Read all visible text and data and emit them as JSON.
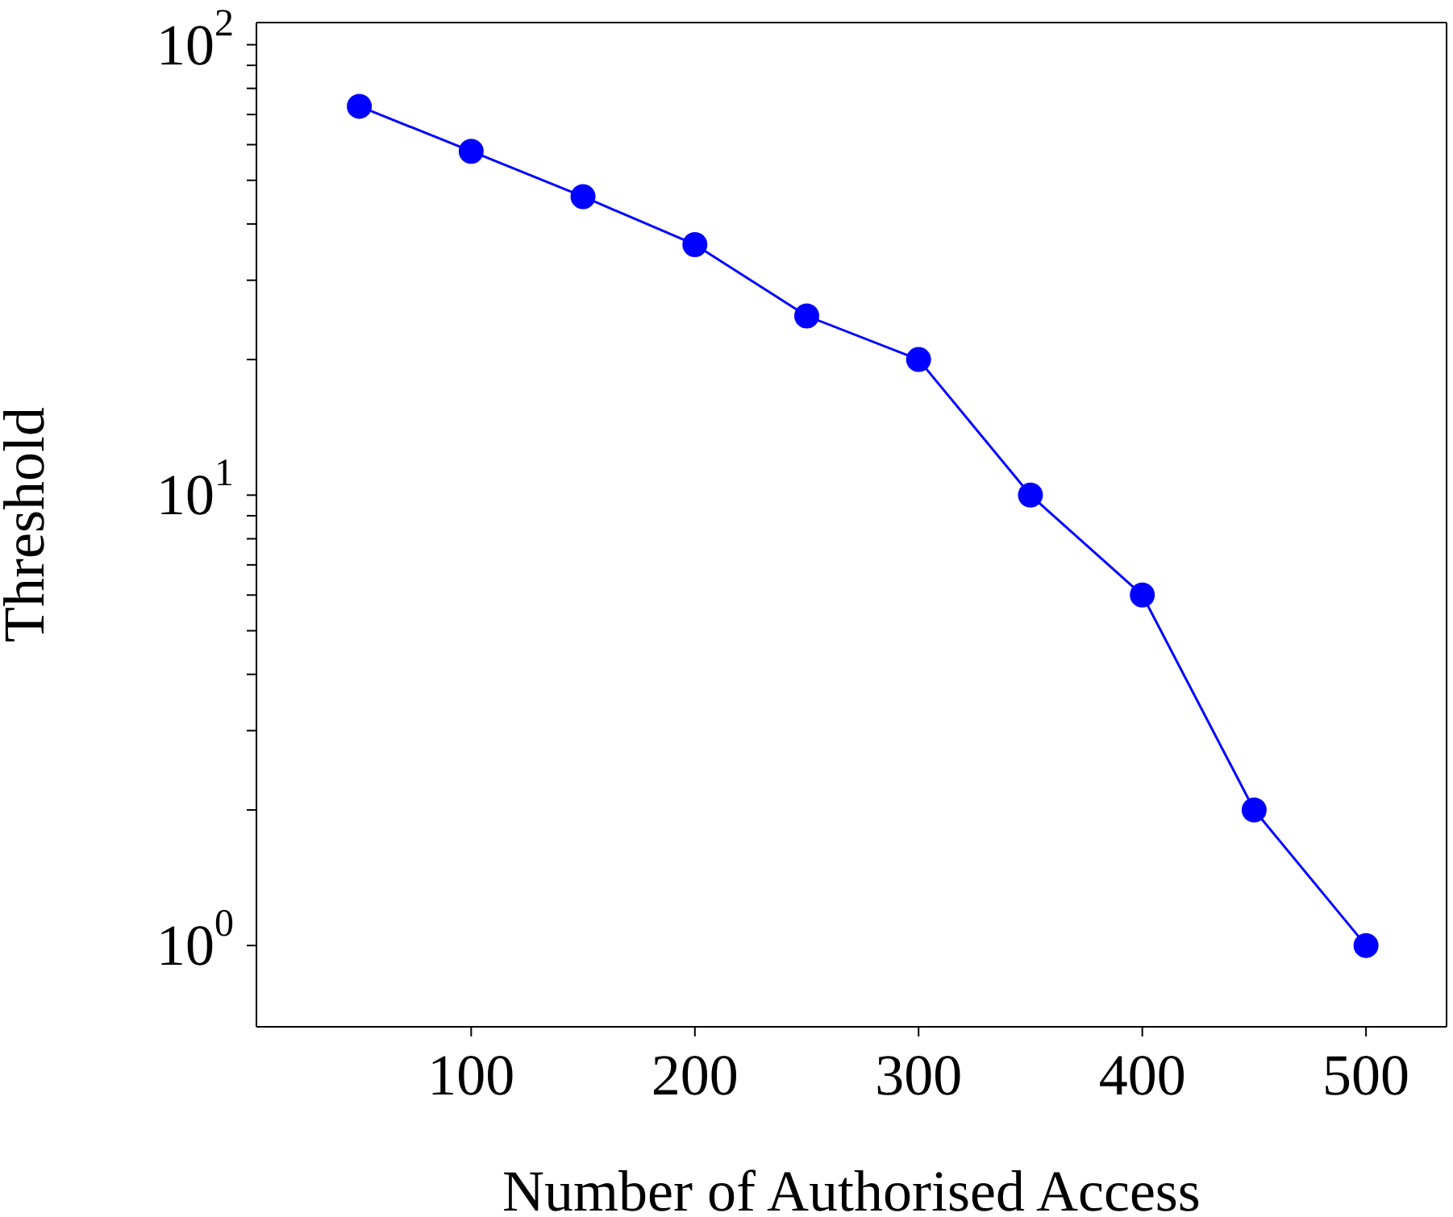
{
  "chart_data": {
    "type": "line",
    "xlabel": "Number of Authorised Access",
    "ylabel": "Threshold",
    "x": [
      50,
      100,
      150,
      200,
      250,
      300,
      350,
      400,
      450,
      500
    ],
    "series": [
      {
        "color": "#0000ff",
        "values": [
          73,
          58,
          46,
          36,
          25,
          20,
          10,
          6,
          2,
          1
        ]
      }
    ],
    "xlim": [
      4,
      536
    ],
    "xticks": [
      100,
      200,
      300,
      400,
      500
    ],
    "ylim": [
      0.66,
      112
    ],
    "yticks": [
      {
        "value": 1,
        "label": "10$^{0}$"
      },
      {
        "value": 2,
        "label": null
      },
      {
        "value": 3,
        "label": null
      },
      {
        "value": 4,
        "label": null
      },
      {
        "value": 5,
        "label": null
      },
      {
        "value": 6,
        "label": null
      },
      {
        "value": 7,
        "label": null
      },
      {
        "value": 8,
        "label": null
      },
      {
        "value": 9,
        "label": null
      },
      {
        "value": 10,
        "label": "10$^{1}$"
      },
      {
        "value": 20,
        "label": null
      },
      {
        "value": 30,
        "label": null
      },
      {
        "value": 40,
        "label": null
      },
      {
        "value": 50,
        "label": null
      },
      {
        "value": 60,
        "label": null
      },
      {
        "value": 70,
        "label": null
      },
      {
        "value": 80,
        "label": null
      },
      {
        "value": 90,
        "label": null
      },
      {
        "value": 100,
        "label": "10$^{2}$"
      }
    ],
    "log": "y",
    "grid": false,
    "marker": "circle",
    "line_style": "solid"
  }
}
